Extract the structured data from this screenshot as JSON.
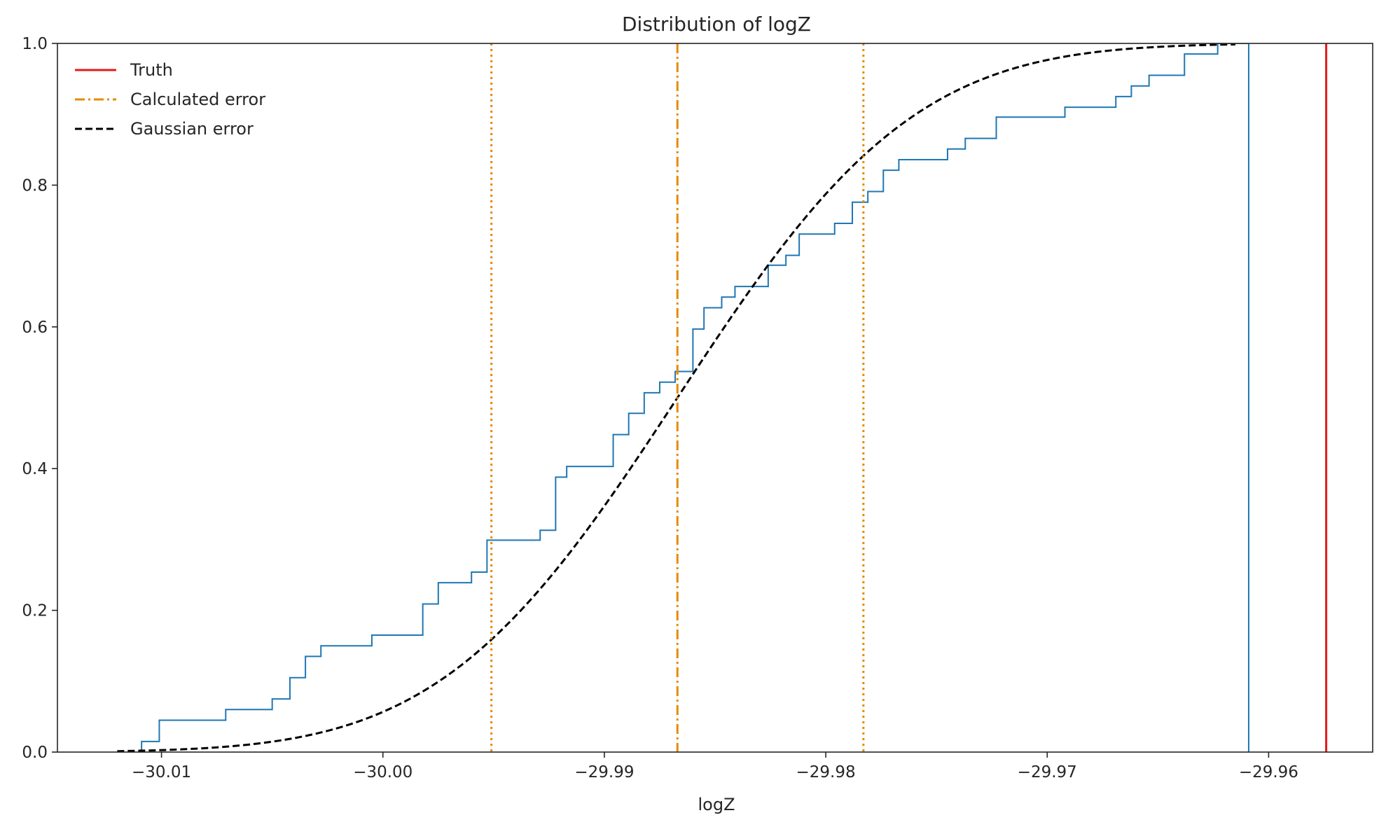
{
  "chart_data": {
    "type": "line",
    "title": "Distribution of logZ",
    "xlabel": "logZ",
    "ylabel": "",
    "xlim": [
      -30.0147,
      -29.9553
    ],
    "ylim": [
      0.0,
      1.0
    ],
    "xticks": [
      -30.01,
      -30.0,
      -29.99,
      -29.98,
      -29.97,
      -29.96
    ],
    "xtick_labels": [
      "−30.01",
      "−30.00",
      "−29.99",
      "−29.98",
      "−29.97",
      "−29.96"
    ],
    "yticks": [
      0.0,
      0.2,
      0.4,
      0.6,
      0.8,
      1.0
    ],
    "ytick_labels": [
      "0.0",
      "0.2",
      "0.4",
      "0.6",
      "0.8",
      "1.0"
    ],
    "grid": false,
    "legend": {
      "position": "top-left",
      "entries": [
        {
          "label": "Truth",
          "color": "#e41a1c",
          "style": "solid"
        },
        {
          "label": "Calculated error",
          "color": "#e68a00",
          "style": "dashdot"
        },
        {
          "label": "Gaussian error",
          "color": "#000000",
          "style": "dashed"
        }
      ]
    },
    "truth": {
      "x": -29.9574,
      "color": "#e41a1c"
    },
    "calculated_error": {
      "mean": -29.9867,
      "lower": -29.9951,
      "upper": -29.9783,
      "color": "#e68a00"
    },
    "gaussian_error": {
      "mean": -29.9867,
      "sigma": 0.0084,
      "x_range": [
        -30.012,
        -29.9615
      ],
      "color": "#000000"
    },
    "empirical_cdf": {
      "color": "#1f77b4",
      "x": [
        -30.0109,
        -30.0101,
        -30.0071,
        -30.005,
        -30.0042,
        -30.0035,
        -30.0028,
        -30.0005,
        -29.9982,
        -29.9975,
        -29.996,
        -29.9953,
        -29.9929,
        -29.9922,
        -29.9917,
        -29.9896,
        -29.9889,
        -29.9882,
        -29.9875,
        -29.9868,
        -29.986,
        -29.9855,
        -29.9847,
        -29.9841,
        -29.9826,
        -29.9818,
        -29.9812,
        -29.9796,
        -29.9788,
        -29.9781,
        -29.9774,
        -29.9767,
        -29.9745,
        -29.9737,
        -29.9723,
        -29.9692,
        -29.9669,
        -29.9662,
        -29.9654,
        -29.9638,
        -29.9623,
        -29.9616,
        -29.9609
      ],
      "y": [
        0.015,
        0.045,
        0.06,
        0.075,
        0.105,
        0.135,
        0.15,
        0.165,
        0.209,
        0.239,
        0.254,
        0.299,
        0.313,
        0.388,
        0.403,
        0.448,
        0.478,
        0.507,
        0.522,
        0.537,
        0.597,
        0.627,
        0.642,
        0.657,
        0.687,
        0.701,
        0.731,
        0.746,
        0.776,
        0.791,
        0.821,
        0.836,
        0.851,
        0.866,
        0.896,
        0.91,
        0.925,
        0.94,
        0.955,
        0.985,
        1.0,
        1.0,
        1.0
      ]
    }
  }
}
